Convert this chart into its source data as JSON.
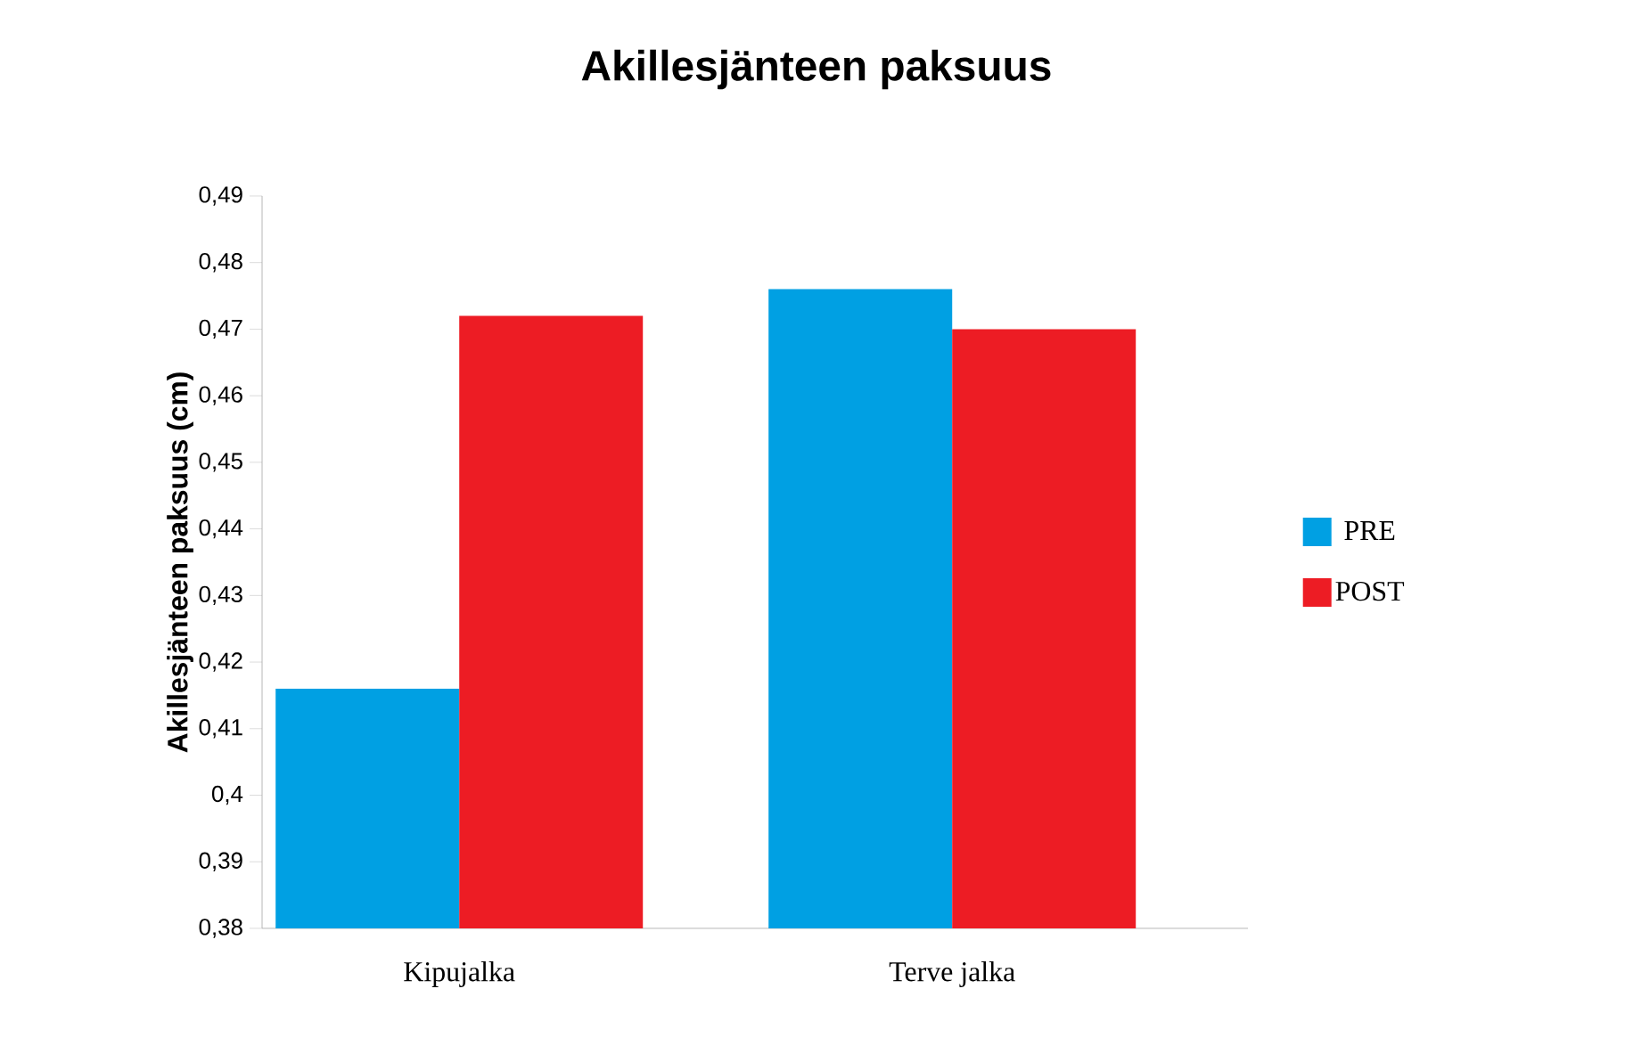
{
  "chart_data": {
    "type": "bar",
    "title": "Akillesjänteen paksuus",
    "ylabel": "Akillesjänteen paksuus (cm)",
    "categories": [
      "Kipujalka",
      "Terve jalka"
    ],
    "series": [
      {
        "name": "PRE",
        "color": "#00a0e3",
        "values": [
          0.416,
          0.476
        ]
      },
      {
        "name": "POST",
        "color": "#ed1c24",
        "values": [
          0.472,
          0.47
        ]
      }
    ],
    "ylim": [
      0.38,
      0.49
    ],
    "yticks": [
      {
        "value": 0.38,
        "label": "0,38"
      },
      {
        "value": 0.39,
        "label": "0,39"
      },
      {
        "value": 0.4,
        "label": "0,4"
      },
      {
        "value": 0.41,
        "label": "0,41"
      },
      {
        "value": 0.42,
        "label": "0,42"
      },
      {
        "value": 0.43,
        "label": "0,43"
      },
      {
        "value": 0.44,
        "label": "0,44"
      },
      {
        "value": 0.45,
        "label": "0,45"
      },
      {
        "value": 0.46,
        "label": "0,46"
      },
      {
        "value": 0.47,
        "label": "0,47"
      },
      {
        "value": 0.48,
        "label": "0,48"
      },
      {
        "value": 0.49,
        "label": "0,49"
      }
    ],
    "grid": false,
    "legend": "right"
  }
}
